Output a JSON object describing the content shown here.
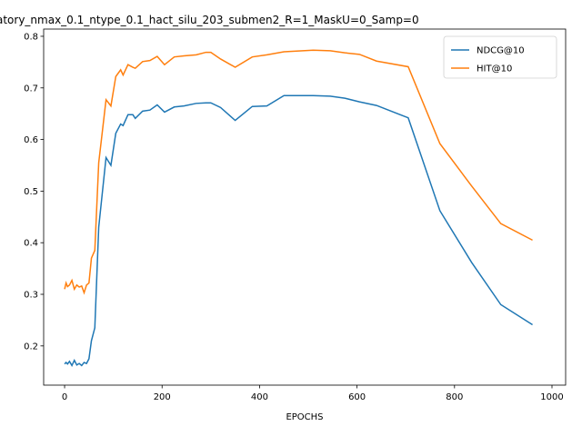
{
  "chart_data": {
    "type": "line",
    "title": "atory_nmax_0.1_ntype_0.1_hact_silu_203_submen2_R=1_MaskU=0_Samp=0",
    "x_label": "EPOCHS",
    "x": [
      0,
      3,
      6,
      10,
      15,
      20,
      25,
      30,
      35,
      40,
      45,
      50,
      55,
      62,
      70,
      85,
      95,
      105,
      115,
      120,
      130,
      140,
      145,
      160,
      175,
      190,
      205,
      225,
      245,
      270,
      290,
      300,
      320,
      350,
      385,
      415,
      450,
      510,
      545,
      575,
      605,
      640,
      705,
      770,
      835,
      895,
      960
    ],
    "series": [
      {
        "name": "NDCG@10",
        "color": "#1f77b4",
        "values": [
          0.165,
          0.168,
          0.165,
          0.17,
          0.162,
          0.172,
          0.163,
          0.166,
          0.162,
          0.168,
          0.166,
          0.175,
          0.21,
          0.235,
          0.43,
          0.565,
          0.55,
          0.612,
          0.63,
          0.627,
          0.648,
          0.648,
          0.641,
          0.655,
          0.657,
          0.667,
          0.653,
          0.663,
          0.665,
          0.67,
          0.671,
          0.671,
          0.662,
          0.637,
          0.664,
          0.665,
          0.685,
          0.685,
          0.684,
          0.68,
          0.673,
          0.666,
          0.642,
          0.462,
          0.362,
          0.28,
          0.241
        ]
      },
      {
        "name": "HIT@10",
        "color": "#ff7f0e",
        "values": [
          0.31,
          0.322,
          0.315,
          0.318,
          0.327,
          0.31,
          0.318,
          0.314,
          0.316,
          0.303,
          0.318,
          0.322,
          0.37,
          0.385,
          0.555,
          0.677,
          0.665,
          0.722,
          0.735,
          0.725,
          0.745,
          0.74,
          0.738,
          0.751,
          0.753,
          0.761,
          0.745,
          0.76,
          0.762,
          0.764,
          0.769,
          0.769,
          0.756,
          0.74,
          0.76,
          0.764,
          0.77,
          0.773,
          0.772,
          0.768,
          0.765,
          0.752,
          0.741,
          0.592,
          0.51,
          0.437,
          0.405
        ]
      }
    ],
    "xlim": [
      -43,
      1028
    ],
    "xticks": [
      0,
      200,
      400,
      600,
      800,
      1000
    ],
    "ylim": [
      0.124,
      0.814
    ],
    "yticks": [
      0.2,
      0.3,
      0.4,
      0.5,
      0.6,
      0.7,
      0.8
    ],
    "legend": "upper right"
  }
}
